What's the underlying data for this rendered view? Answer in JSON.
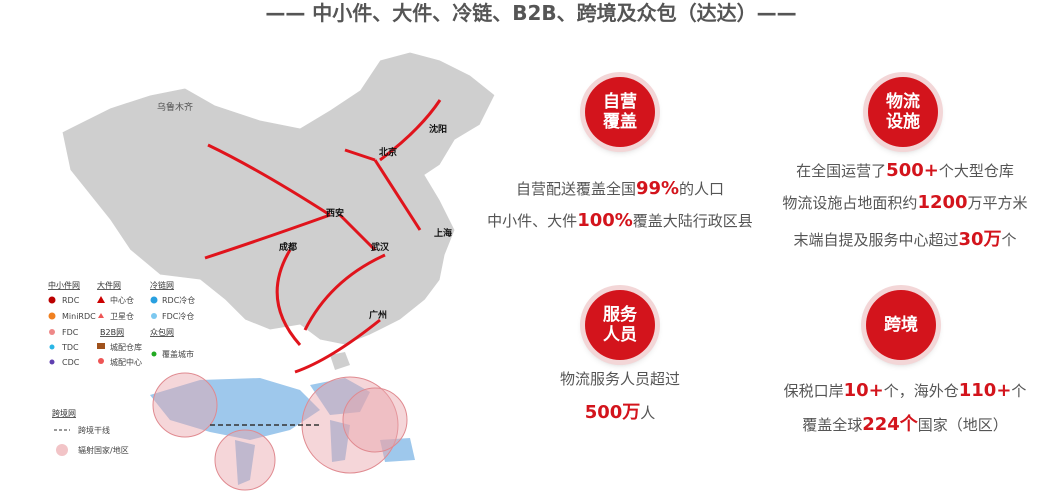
{
  "title": "—— 中小件、大件、冷链、B2B、跨境及众包（达达）——",
  "map": {
    "cities": [
      "乌鲁木齐",
      "北京",
      "沈阳",
      "西安",
      "上海",
      "成都",
      "武汉",
      "广州"
    ]
  },
  "legend": {
    "small": {
      "title": "中小件网",
      "items": [
        "RDC",
        "MiniRDC",
        "FDC",
        "TDC",
        "CDC"
      ]
    },
    "large": {
      "title": "大件网",
      "items": [
        "中心仓",
        "卫星仓"
      ]
    },
    "cold": {
      "title": "冷链网",
      "items": [
        "RDC冷仓",
        "FDC冷仓"
      ]
    },
    "b2b": {
      "title": "B2B网",
      "items": [
        "城配仓库",
        "城配中心"
      ]
    },
    "crowd": {
      "title": "众包网",
      "items": [
        "覆盖城市"
      ]
    },
    "cross": {
      "title": "跨境网",
      "items": [
        "跨境干线",
        "辐射国家/地区"
      ]
    }
  },
  "features": [
    {
      "badge": [
        "自营",
        "覆盖"
      ],
      "lines": [
        [
          "自营配送覆盖全国",
          "99%",
          "的人口"
        ],
        [
          "中小件、大件",
          "100%",
          "覆盖大陆行政区县"
        ]
      ]
    },
    {
      "badge": [
        "物流",
        "设施"
      ],
      "lines": [
        [
          "在全国运营了",
          "500+",
          "个大型仓库"
        ],
        [
          "物流设施占地面积约",
          "1200",
          "万平方米"
        ],
        [
          "末端自提及服务中心超过",
          "30万",
          "个"
        ]
      ]
    },
    {
      "badge": [
        "服务",
        "人员"
      ],
      "lines": [
        [
          "物流服务人员超过"
        ],
        [
          "500万",
          "人"
        ]
      ]
    },
    {
      "badge": [
        "跨境"
      ],
      "lines": [
        [
          "保税口岸",
          "10+",
          "个，海外仓",
          "110+",
          "个"
        ],
        [
          "覆盖全球",
          "224个",
          "国家（地区）"
        ]
      ]
    }
  ]
}
